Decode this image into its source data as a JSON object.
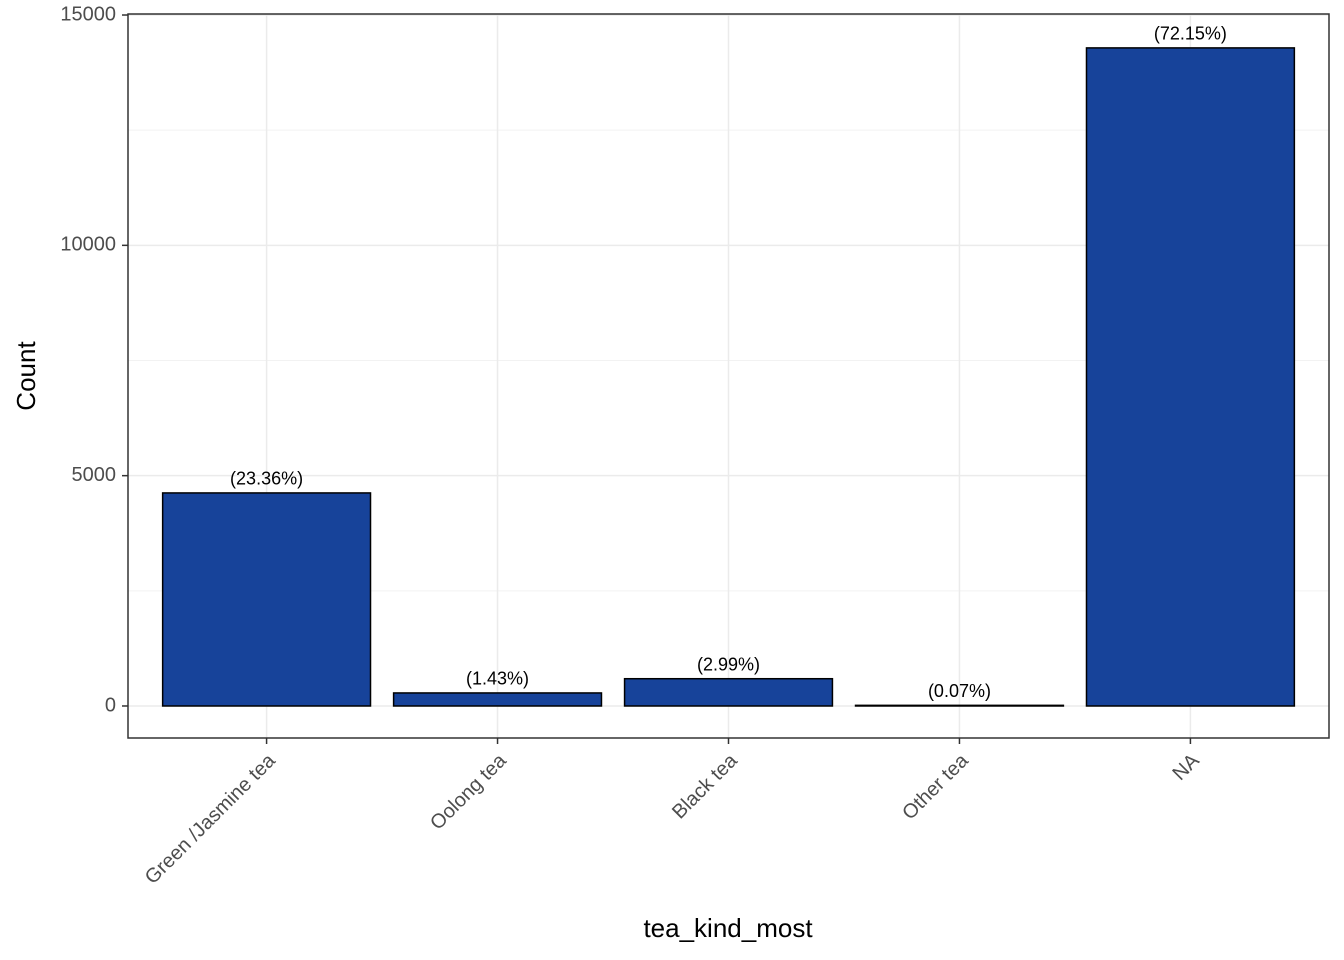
{
  "chart_data": {
    "type": "bar",
    "x_label": "tea_kind_most",
    "y_label": "Count",
    "categories": [
      "Green /Jasmine tea",
      "Oolong tea",
      "Black tea",
      "Other tea",
      "NA"
    ],
    "values": [
      4625,
      283,
      592,
      14,
      14286
    ],
    "percent_labels": [
      "(23.36%)",
      "(1.43%)",
      "(2.99%)",
      "(0.07%)",
      "(72.15%)"
    ],
    "color": "#17439a",
    "ylim": [
      -695,
      15022
    ],
    "yticks": [
      0,
      5000,
      10000,
      15000
    ],
    "minor_yticks": [
      2500,
      7500,
      12500
    ],
    "grid": true
  }
}
